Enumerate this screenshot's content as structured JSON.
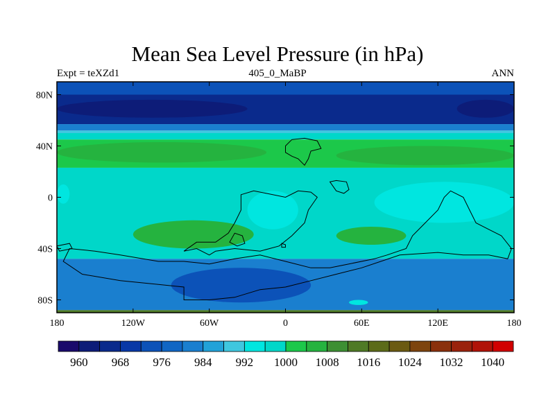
{
  "chart_data": {
    "type": "heatmap",
    "title": "Mean Sea Level Pressure (in hPa)",
    "left_label": "Expt = teXZd1",
    "center_label": "405_0_MaBP",
    "right_label": "ANN",
    "xlim": [
      -180,
      180
    ],
    "ylim": [
      -90,
      90
    ],
    "x_ticks": [
      {
        "value": -180,
        "label": "180"
      },
      {
        "value": -120,
        "label": "120W"
      },
      {
        "value": -60,
        "label": "60W"
      },
      {
        "value": 0,
        "label": "0"
      },
      {
        "value": 60,
        "label": "60E"
      },
      {
        "value": 120,
        "label": "120E"
      },
      {
        "value": 180,
        "label": "180"
      }
    ],
    "y_ticks": [
      {
        "value": 80,
        "label": "80N"
      },
      {
        "value": 40,
        "label": "40N"
      },
      {
        "value": 0,
        "label": "0"
      },
      {
        "value": -40,
        "label": "40S"
      },
      {
        "value": -80,
        "label": "80S"
      }
    ],
    "latitude_bands": [
      {
        "lat_from": 90,
        "lat_to": 80,
        "value_hPa": 972
      },
      {
        "lat_from": 80,
        "lat_to": 57,
        "value_hPa": 964
      },
      {
        "lat_from": 57,
        "lat_to": 52,
        "value_hPa": 980
      },
      {
        "lat_from": 52,
        "lat_to": 50,
        "value_hPa": 988
      },
      {
        "lat_from": 50,
        "lat_to": 45,
        "value_hPa": 996
      },
      {
        "lat_from": 45,
        "lat_to": 23,
        "value_hPa": 1002
      },
      {
        "lat_from": 23,
        "lat_to": -48,
        "value_hPa": 998
      },
      {
        "lat_from": -48,
        "lat_to": -88,
        "value_hPa": 982
      },
      {
        "lat_from": -88,
        "lat_to": -90,
        "value_hPa": 1014
      }
    ],
    "regions": [
      {
        "name": "north-polar-low-west",
        "value_hPa": 960,
        "lon_range": [
          -180,
          -30
        ],
        "lat_range": [
          62,
          76
        ]
      },
      {
        "name": "north-polar-low-east",
        "value_hPa": 960,
        "lon_range": [
          135,
          180
        ],
        "lat_range": [
          62,
          76
        ]
      },
      {
        "name": "north-subtropical-high-west",
        "value_hPa": 1006,
        "lon_range": [
          -180,
          -15
        ],
        "lat_range": [
          27,
          43
        ]
      },
      {
        "name": "north-subtropical-high-east",
        "value_hPa": 1006,
        "lon_range": [
          40,
          180
        ],
        "lat_range": [
          25,
          40
        ]
      },
      {
        "name": "tropical-low-west",
        "value_hPa": 992,
        "lon_range": [
          -180,
          -170
        ],
        "lat_range": [
          -5,
          10
        ]
      },
      {
        "name": "tropical-low-central",
        "value_hPa": 992,
        "lon_range": [
          -30,
          10
        ],
        "lat_range": [
          -25,
          5
        ]
      },
      {
        "name": "tropical-low-east",
        "value_hPa": 992,
        "lon_range": [
          70,
          180
        ],
        "lat_range": [
          -20,
          12
        ]
      },
      {
        "name": "south-subtropical-high-west",
        "value_hPa": 1006,
        "lon_range": [
          -120,
          -25
        ],
        "lat_range": [
          -40,
          -18
        ]
      },
      {
        "name": "south-subtropical-high-east",
        "value_hPa": 1006,
        "lon_range": [
          40,
          95
        ],
        "lat_range": [
          -37,
          -23
        ]
      },
      {
        "name": "south-polar-low",
        "value_hPa": 974,
        "lon_range": [
          -90,
          20
        ],
        "lat_range": [
          -82,
          -55
        ]
      },
      {
        "name": "south-polar-high-spot",
        "value_hPa": 992,
        "lon_range": [
          50,
          65
        ],
        "lat_range": [
          -84,
          -80
        ]
      }
    ],
    "colorbar": {
      "levels": [
        956,
        960,
        964,
        968,
        972,
        976,
        980,
        984,
        988,
        992,
        996,
        1000,
        1004,
        1008,
        1012,
        1016,
        1020,
        1024,
        1028,
        1032,
        1036,
        1040,
        1044
      ],
      "labeled_levels": [
        {
          "value": 960,
          "label": "960"
        },
        {
          "value": 968,
          "label": "968"
        },
        {
          "value": 976,
          "label": "976"
        },
        {
          "value": 984,
          "label": "984"
        },
        {
          "value": 992,
          "label": "992"
        },
        {
          "value": 1000,
          "label": "1000"
        },
        {
          "value": 1008,
          "label": "1008"
        },
        {
          "value": 1016,
          "label": "1016"
        },
        {
          "value": 1024,
          "label": "1024"
        },
        {
          "value": 1032,
          "label": "1032"
        },
        {
          "value": 1040,
          "label": "1040"
        }
      ],
      "colors": [
        "#1a0a6b",
        "#0d1c78",
        "#0a2a8c",
        "#0838a6",
        "#0c52b8",
        "#1066c4",
        "#1a7fcf",
        "#22a2d8",
        "#3fc7df",
        "#00e6e0",
        "#00d7c9",
        "#1cc84a",
        "#25b33f",
        "#3d8f33",
        "#4f7a25",
        "#5c6b19",
        "#6b5a12",
        "#7d440e",
        "#8a300c",
        "#9a220c",
        "#b01308",
        "#d10000"
      ]
    },
    "continent_outlines": [
      {
        "name": "north-landmass",
        "points": [
          [
            0,
            40
          ],
          [
            5,
            45
          ],
          [
            15,
            46
          ],
          [
            25,
            44
          ],
          [
            28,
            38
          ],
          [
            20,
            36
          ],
          [
            18,
            30
          ],
          [
            15,
            25
          ],
          [
            10,
            30
          ],
          [
            5,
            32
          ],
          [
            0,
            35
          ]
        ]
      },
      {
        "name": "laurussia-south",
        "points": [
          [
            -35,
            2
          ],
          [
            -25,
            5
          ],
          [
            -15,
            3
          ],
          [
            0,
            0
          ],
          [
            10,
            5
          ],
          [
            20,
            4
          ],
          [
            25,
            0
          ],
          [
            18,
            -10
          ],
          [
            15,
            -20
          ],
          [
            5,
            -30
          ],
          [
            -5,
            -38
          ],
          [
            -20,
            -42
          ],
          [
            -40,
            -40
          ],
          [
            -55,
            -42
          ],
          [
            -60,
            -45
          ],
          [
            -70,
            -40
          ],
          [
            -80,
            -42
          ],
          [
            -70,
            -35
          ],
          [
            -55,
            -35
          ],
          [
            -45,
            -28
          ],
          [
            -40,
            -20
          ],
          [
            -35,
            -10
          ]
        ]
      },
      {
        "name": "gondwana",
        "points": [
          [
            -170,
            -40
          ],
          [
            -150,
            -42
          ],
          [
            -130,
            -45
          ],
          [
            -100,
            -50
          ],
          [
            -80,
            -50
          ],
          [
            -60,
            -52
          ],
          [
            -40,
            -48
          ],
          [
            -20,
            -45
          ],
          [
            0,
            -50
          ],
          [
            20,
            -55
          ],
          [
            35,
            -55
          ],
          [
            50,
            -52
          ],
          [
            70,
            -48
          ],
          [
            80,
            -45
          ],
          [
            95,
            -40
          ],
          [
            100,
            -30
          ],
          [
            110,
            -20
          ],
          [
            120,
            -10
          ],
          [
            125,
            0
          ],
          [
            130,
            5
          ],
          [
            140,
            0
          ],
          [
            145,
            -10
          ],
          [
            150,
            -20
          ],
          [
            160,
            -25
          ],
          [
            170,
            -30
          ],
          [
            178,
            -40
          ],
          [
            175,
            -48
          ],
          [
            160,
            -45
          ],
          [
            140,
            -45
          ],
          [
            120,
            -43
          ],
          [
            90,
            -45
          ],
          [
            60,
            -55
          ],
          [
            40,
            -60
          ],
          [
            20,
            -65
          ],
          [
            0,
            -70
          ],
          [
            -20,
            -72
          ],
          [
            -40,
            -78
          ],
          [
            -60,
            -80
          ],
          [
            -80,
            -80
          ],
          [
            -80,
            -70
          ],
          [
            -100,
            -68
          ],
          [
            -130,
            -65
          ],
          [
            -160,
            -60
          ],
          [
            -175,
            -50
          ]
        ]
      },
      {
        "name": "north-china-block",
        "points": [
          [
            35,
            12
          ],
          [
            40,
            13
          ],
          [
            48,
            12
          ],
          [
            50,
            6
          ],
          [
            46,
            3
          ],
          [
            40,
            5
          ]
        ]
      },
      {
        "name": "south-island",
        "points": [
          [
            -40,
            -28
          ],
          [
            -34,
            -30
          ],
          [
            -32,
            -36
          ],
          [
            -38,
            -38
          ],
          [
            -44,
            -35
          ]
        ]
      },
      {
        "name": "small-block-1",
        "points": [
          [
            -180,
            -38
          ],
          [
            -170,
            -36
          ],
          [
            -168,
            -40
          ],
          [
            -178,
            -42
          ]
        ]
      },
      {
        "name": "small-block-2",
        "points": [
          [
            -3,
            -36
          ],
          [
            0,
            -37
          ],
          [
            0,
            -39
          ],
          [
            -3,
            -39
          ]
        ]
      }
    ]
  }
}
